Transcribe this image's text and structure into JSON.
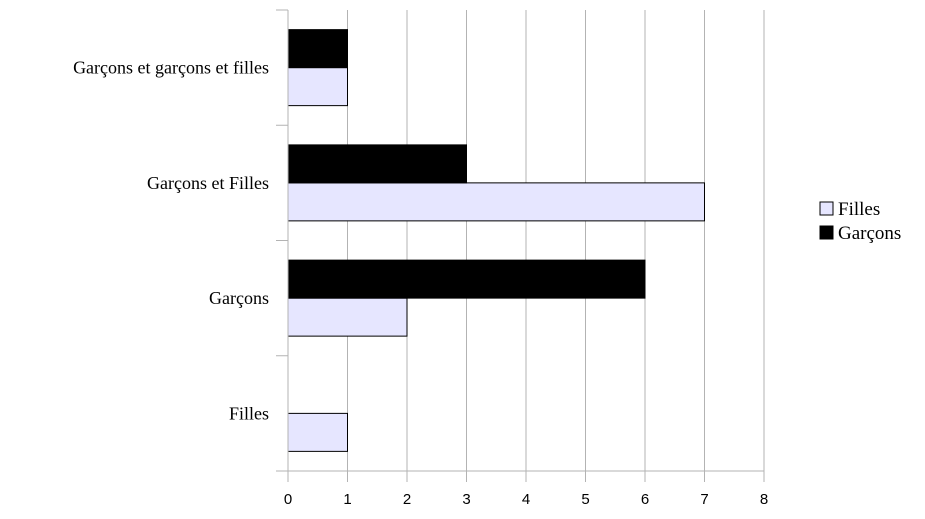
{
  "chart_data": {
    "type": "bar",
    "orientation": "horizontal",
    "categories": [
      "Filles",
      "Garçons",
      "Garçons et Filles",
      "Garçons et garçons et filles"
    ],
    "series": [
      {
        "name": "Filles",
        "values": [
          1,
          2,
          7,
          1
        ],
        "color": "#e6e6ff"
      },
      {
        "name": "Garçons",
        "values": [
          0,
          6,
          3,
          1
        ],
        "color": "#000000"
      }
    ],
    "xlim": [
      0,
      8
    ],
    "x_ticks": [
      0,
      1,
      2,
      3,
      4,
      5,
      6,
      7,
      8
    ],
    "grid": "vertical",
    "legend_position": "right",
    "title": "",
    "xlabel": "",
    "ylabel": ""
  }
}
